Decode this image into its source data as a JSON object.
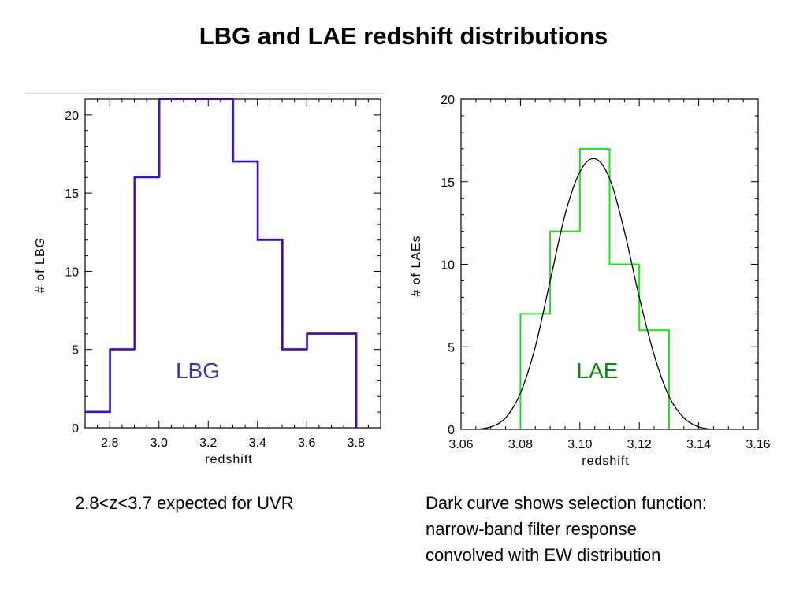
{
  "title": "LBG and LAE redshift distributions",
  "captions": {
    "lbg": "2.8<z<3.7 expected for UVR",
    "lae_lines": [
      "Dark curve shows selection function:",
      "narrow-band filter response",
      "convolved with EW distribution"
    ]
  },
  "colors": {
    "lbg_line": "#1a1acc",
    "lbg_label": "#3a3aa8",
    "lae_line": "#22dd22",
    "lae_label": "#118811",
    "curve": "#000000"
  },
  "chart_data": [
    {
      "type": "step-histogram",
      "inner_label": "LBG",
      "xlabel": "redshift",
      "ylabel": "# of LBG",
      "xlim": [
        2.7,
        3.9
      ],
      "ylim": [
        0,
        21
      ],
      "xticks": [
        2.8,
        3.0,
        3.2,
        3.4,
        3.6,
        3.8
      ],
      "xtick_labels": [
        "2.8",
        "3.0",
        "3.2",
        "3.4",
        "3.6",
        "3.8"
      ],
      "yticks": [
        0,
        5,
        10,
        15,
        20
      ],
      "ytick_labels": [
        "0",
        "5",
        "10",
        "15",
        "20"
      ],
      "bin_edges": [
        2.7,
        2.8,
        2.9,
        3.0,
        3.1,
        3.2,
        3.3,
        3.4,
        3.5,
        3.6,
        3.7,
        3.8
      ],
      "counts": [
        1,
        5,
        16,
        21,
        21,
        21,
        17,
        12,
        5,
        6,
        6
      ]
    },
    {
      "type": "step-histogram",
      "inner_label": "LAE",
      "xlabel": "redshift",
      "ylabel": "# of LAEs",
      "xlim": [
        3.06,
        3.16
      ],
      "ylim": [
        0,
        20
      ],
      "xticks": [
        3.06,
        3.08,
        3.1,
        3.12,
        3.14,
        3.16
      ],
      "xtick_labels": [
        "3.06",
        "3.08",
        "3.10",
        "3.12",
        "3.14",
        "3.16"
      ],
      "yticks": [
        0,
        5,
        10,
        15,
        20
      ],
      "ytick_labels": [
        "0",
        "5",
        "10",
        "15",
        "20"
      ],
      "bin_edges": [
        3.08,
        3.09,
        3.1,
        3.11,
        3.12,
        3.13
      ],
      "counts": [
        7,
        12,
        17,
        10,
        6
      ],
      "curve": {
        "name": "selection function",
        "x": [
          3.065,
          3.07,
          3.075,
          3.08,
          3.085,
          3.09,
          3.095,
          3.1,
          3.105,
          3.11,
          3.115,
          3.12,
          3.125,
          3.13,
          3.135,
          3.14,
          3.145
        ],
        "y": [
          0.0,
          0.15,
          0.7,
          2.2,
          5.0,
          9.0,
          13.0,
          15.6,
          16.4,
          15.2,
          12.0,
          8.0,
          4.5,
          2.0,
          0.7,
          0.15,
          0.0
        ]
      }
    }
  ]
}
